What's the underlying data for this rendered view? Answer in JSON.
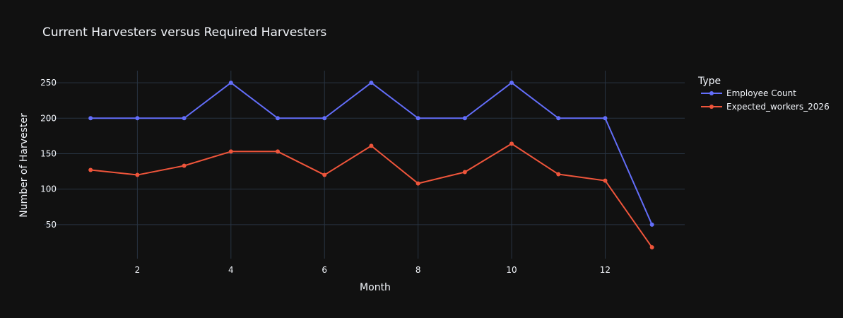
{
  "chart_data": {
    "type": "line",
    "title": "Current Harvesters versus Required Harvesters",
    "xlabel": "Month",
    "ylabel": "Number of Harvester",
    "legend_title": "Type",
    "legend_position": "top-right",
    "grid": true,
    "x": [
      1,
      2,
      3,
      4,
      5,
      6,
      7,
      8,
      9,
      10,
      11,
      12,
      13
    ],
    "xlim": [
      0.0,
      13.7
    ],
    "ylim": [
      2,
      267
    ],
    "x_ticks": [
      2,
      4,
      6,
      8,
      10,
      12
    ],
    "y_ticks": [
      50,
      100,
      150,
      200,
      250
    ],
    "series": [
      {
        "name": "Employee Count",
        "color": "#636efa",
        "values": [
          200,
          200,
          200,
          250,
          200,
          200,
          250,
          200,
          200,
          250,
          200,
          200,
          50
        ]
      },
      {
        "name": "Expected_workers_2026",
        "color": "#ef553b",
        "values": [
          127,
          120,
          133,
          153,
          153,
          120,
          161,
          108,
          124,
          164,
          121,
          112,
          18
        ]
      }
    ]
  }
}
